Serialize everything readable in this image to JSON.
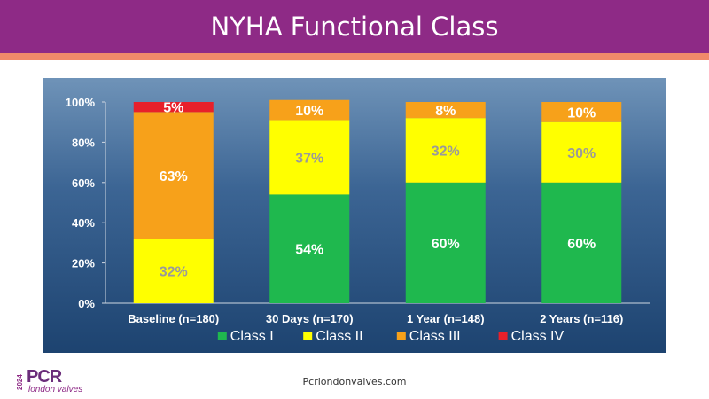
{
  "header": {
    "title": "NYHA Functional Class"
  },
  "footer": {
    "url": "Pcrlondonvalves.com"
  },
  "logo": {
    "brand": "PCR",
    "subtitle": "london valves",
    "year": "2024"
  },
  "colors": {
    "class_i": "#1fb84e",
    "class_ii": "#ffff00",
    "class_iii": "#f7a11a",
    "class_iv": "#e8202a",
    "header": "#8e2a86",
    "accent": "#f08a6a"
  },
  "chart_data": {
    "type": "bar",
    "stacked": true,
    "categories": [
      "Baseline (n=180)",
      "30 Days (n=170)",
      "1 Year (n=148)",
      "2 Years (n=116)"
    ],
    "series": [
      {
        "name": "Class I",
        "values": [
          0,
          54,
          60,
          60
        ],
        "labels": [
          "",
          "54%",
          "60%",
          "60%"
        ]
      },
      {
        "name": "Class II",
        "values": [
          32,
          37,
          32,
          30
        ],
        "labels": [
          "32%",
          "37%",
          "32%",
          "30%"
        ]
      },
      {
        "name": "Class III",
        "values": [
          63,
          10,
          8,
          10
        ],
        "labels": [
          "63%",
          "10%",
          "8%",
          "10%"
        ]
      },
      {
        "name": "Class IV",
        "values": [
          5,
          0,
          0,
          0
        ],
        "labels": [
          "5%",
          "",
          "",
          ""
        ]
      }
    ],
    "ylim": [
      0,
      100
    ],
    "yticks": [
      "0%",
      "20%",
      "40%",
      "60%",
      "80%",
      "100%"
    ],
    "legend_position": "bottom"
  }
}
